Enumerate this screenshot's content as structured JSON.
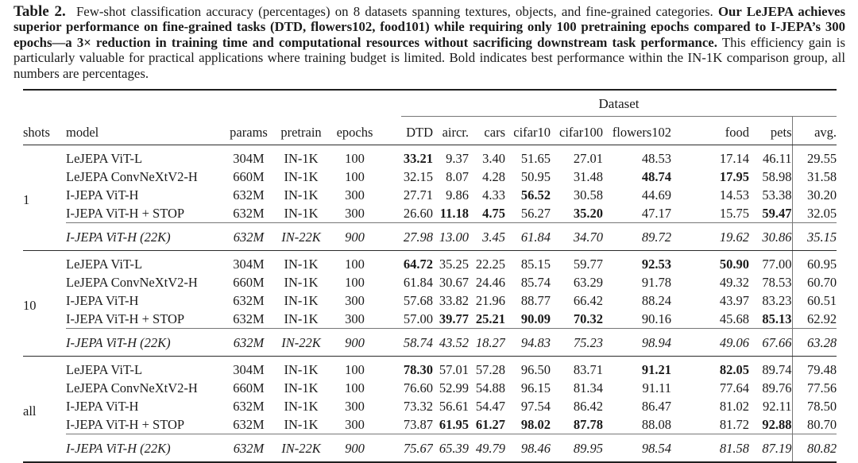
{
  "caption": {
    "label": "Table 2.",
    "intro": "Few-shot classification accuracy (percentages) on 8 datasets spanning textures, objects, and fine-grained categories.",
    "bold": "Our LeJEPA achieves superior performance on fine-grained tasks (DTD, flowers102, food101) while requiring only 100 pretraining epochs compared to I-JEPA’s 300 epochs—a 3× reduction in training time and computational resources without sacrificing downstream task performance.",
    "outro": "This efficiency gain is particularly valuable for practical applications where training budget is limited. Bold indicates best performance within the IN-1K comparison group, all numbers are percentages."
  },
  "table": {
    "group_header": "Dataset",
    "columns": [
      "shots",
      "model",
      "params",
      "pretrain",
      "epochs",
      "DTD",
      "aircr.",
      "cars",
      "cifar10",
      "cifar100",
      "flowers102",
      "food",
      "pets",
      "avg."
    ],
    "blocks": [
      {
        "shots": "1",
        "rows": [
          {
            "model": "LeJEPA ViT-L",
            "params": "304M",
            "pretrain": "IN-1K",
            "epochs": "100",
            "values": [
              "33.21",
              "9.37",
              "3.40",
              "51.65",
              "27.01",
              "48.53",
              "17.14",
              "46.11",
              "29.55"
            ],
            "bold": [
              0
            ]
          },
          {
            "model": "LeJEPA ConvNeXtV2-H",
            "params": "660M",
            "pretrain": "IN-1K",
            "epochs": "100",
            "values": [
              "32.15",
              "8.07",
              "4.28",
              "50.95",
              "31.48",
              "48.74",
              "17.95",
              "58.98",
              "31.58"
            ],
            "bold": [
              5,
              6
            ]
          },
          {
            "model": "I-JEPA ViT-H",
            "params": "632M",
            "pretrain": "IN-1K",
            "epochs": "300",
            "values": [
              "27.71",
              "9.86",
              "4.33",
              "56.52",
              "30.58",
              "44.69",
              "14.53",
              "53.38",
              "30.20"
            ],
            "bold": [
              3
            ]
          },
          {
            "model": "I-JEPA ViT-H + STOP",
            "params": "632M",
            "pretrain": "IN-1K",
            "epochs": "300",
            "values": [
              "26.60",
              "11.18",
              "4.75",
              "56.27",
              "35.20",
              "47.17",
              "15.75",
              "59.47",
              "32.05"
            ],
            "bold": [
              1,
              2,
              4,
              7
            ]
          }
        ],
        "ref_row": {
          "model": "I-JEPA ViT-H (22K)",
          "params": "632M",
          "pretrain": "IN-22K",
          "epochs": "900",
          "values": [
            "27.98",
            "13.00",
            "3.45",
            "61.84",
            "34.70",
            "89.72",
            "19.62",
            "30.86",
            "35.15"
          ],
          "bold": []
        }
      },
      {
        "shots": "10",
        "rows": [
          {
            "model": "LeJEPA ViT-L",
            "params": "304M",
            "pretrain": "IN-1K",
            "epochs": "100",
            "values": [
              "64.72",
              "35.25",
              "22.25",
              "85.15",
              "59.77",
              "92.53",
              "50.90",
              "77.00",
              "60.95"
            ],
            "bold": [
              0,
              5,
              6
            ]
          },
          {
            "model": "LeJEPA ConvNeXtV2-H",
            "params": "660M",
            "pretrain": "IN-1K",
            "epochs": "100",
            "values": [
              "61.84",
              "30.67",
              "24.46",
              "85.74",
              "63.29",
              "91.78",
              "49.32",
              "78.53",
              "60.70"
            ],
            "bold": []
          },
          {
            "model": "I-JEPA ViT-H",
            "params": "632M",
            "pretrain": "IN-1K",
            "epochs": "300",
            "values": [
              "57.68",
              "33.82",
              "21.96",
              "88.77",
              "66.42",
              "88.24",
              "43.97",
              "83.23",
              "60.51"
            ],
            "bold": []
          },
          {
            "model": "I-JEPA ViT-H + STOP",
            "params": "632M",
            "pretrain": "IN-1K",
            "epochs": "300",
            "values": [
              "57.00",
              "39.77",
              "25.21",
              "90.09",
              "70.32",
              "90.16",
              "45.68",
              "85.13",
              "62.92"
            ],
            "bold": [
              1,
              2,
              3,
              4,
              7
            ]
          }
        ],
        "ref_row": {
          "model": "I-JEPA ViT-H (22K)",
          "params": "632M",
          "pretrain": "IN-22K",
          "epochs": "900",
          "values": [
            "58.74",
            "43.52",
            "18.27",
            "94.83",
            "75.23",
            "98.94",
            "49.06",
            "67.66",
            "63.28"
          ],
          "bold": []
        }
      },
      {
        "shots": "all",
        "rows": [
          {
            "model": "LeJEPA ViT-L",
            "params": "304M",
            "pretrain": "IN-1K",
            "epochs": "100",
            "values": [
              "78.30",
              "57.01",
              "57.28",
              "96.50",
              "83.71",
              "91.21",
              "82.05",
              "89.74",
              "79.48"
            ],
            "bold": [
              0,
              5,
              6
            ]
          },
          {
            "model": "LeJEPA ConvNeXtV2-H",
            "params": "660M",
            "pretrain": "IN-1K",
            "epochs": "100",
            "values": [
              "76.60",
              "52.99",
              "54.88",
              "96.15",
              "81.34",
              "91.11",
              "77.64",
              "89.76",
              "77.56"
            ],
            "bold": []
          },
          {
            "model": "I-JEPA ViT-H",
            "params": "632M",
            "pretrain": "IN-1K",
            "epochs": "300",
            "values": [
              "73.32",
              "56.61",
              "54.47",
              "97.54",
              "86.42",
              "86.47",
              "81.02",
              "92.11",
              "78.50"
            ],
            "bold": []
          },
          {
            "model": "I-JEPA ViT-H + STOP",
            "params": "632M",
            "pretrain": "IN-1K",
            "epochs": "300",
            "values": [
              "73.87",
              "61.95",
              "61.27",
              "98.02",
              "87.78",
              "88.08",
              "81.72",
              "92.88",
              "80.70"
            ],
            "bold": [
              1,
              2,
              3,
              4,
              7
            ]
          }
        ],
        "ref_row": {
          "model": "I-JEPA ViT-H (22K)",
          "params": "632M",
          "pretrain": "IN-22K",
          "epochs": "900",
          "values": [
            "75.67",
            "65.39",
            "49.79",
            "98.46",
            "89.95",
            "98.54",
            "81.58",
            "87.19",
            "80.82"
          ],
          "bold": []
        }
      }
    ]
  }
}
